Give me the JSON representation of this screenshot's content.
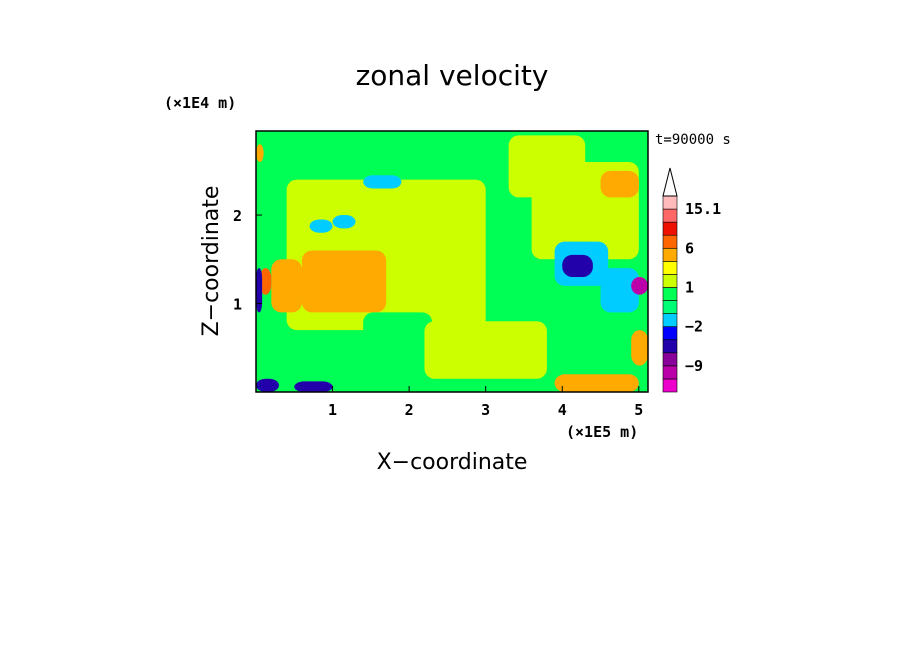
{
  "chart_data": {
    "type": "heatmap",
    "title": "zonal velocity",
    "xlabel": "X−coordinate",
    "ylabel": "Z−coordinate",
    "x_scale_label": "(×1E5 m)",
    "y_scale_label": "(×1E4 m)",
    "time_label": "t=90000 s",
    "xlim": [
      0,
      5.12
    ],
    "ylim": [
      0,
      2.95
    ],
    "x_ticks": [
      1,
      2,
      3,
      4,
      5
    ],
    "y_ticks": [
      1,
      2
    ],
    "colorbar": {
      "tick_labels": [
        "15.1",
        "6",
        "1",
        "−2",
        "−9"
      ],
      "tick_values": [
        15.1,
        6,
        1,
        -2,
        -9
      ],
      "levels": [
        -15,
        -12,
        -9,
        -6,
        -4,
        -2,
        -1,
        0,
        1,
        2,
        3,
        6,
        9,
        12,
        15.1
      ],
      "colors": [
        "#ee00cc",
        "#bb00aa",
        "#880099",
        "#2200aa",
        "#0000ff",
        "#00ccff",
        "#00ff77",
        "#00ff55",
        "#ccff00",
        "#ffff00",
        "#ffaa00",
        "#ff6600",
        "#ee1100",
        "#ff6666",
        "#ffbbbb"
      ]
    },
    "regions": [
      {
        "x": [
          0,
          5.12
        ],
        "z": [
          0,
          2.95
        ],
        "value": 0.5
      },
      {
        "x": [
          0.4,
          3.0
        ],
        "z": [
          0.7,
          2.4
        ],
        "value": 1.5
      },
      {
        "x": [
          3.3,
          4.3
        ],
        "z": [
          2.2,
          2.9
        ],
        "value": 1.5
      },
      {
        "x": [
          3.6,
          5.0
        ],
        "z": [
          1.5,
          2.6
        ],
        "value": 1.5
      },
      {
        "x": [
          0.6,
          1.7
        ],
        "z": [
          0.9,
          1.6
        ],
        "value": 3
      },
      {
        "x": [
          0.2,
          0.6
        ],
        "z": [
          0.9,
          1.5
        ],
        "value": 4
      },
      {
        "x": [
          0.05,
          0.2
        ],
        "z": [
          1.1,
          1.4
        ],
        "value": 8
      },
      {
        "x": [
          1.4,
          2.3
        ],
        "z": [
          0.4,
          0.9
        ],
        "value": 0.5
      },
      {
        "x": [
          2.2,
          3.8
        ],
        "z": [
          0.15,
          0.8
        ],
        "value": 1.5
      },
      {
        "x": [
          3.9,
          5.0
        ],
        "z": [
          0.0,
          0.2
        ],
        "value": 3
      },
      {
        "x": [
          4.9,
          5.12
        ],
        "z": [
          0.3,
          0.7
        ],
        "value": 3
      },
      {
        "x": [
          4.5,
          5.0
        ],
        "z": [
          2.2,
          2.5
        ],
        "value": 3
      },
      {
        "x": [
          0.0,
          0.1
        ],
        "z": [
          2.6,
          2.8
        ],
        "value": 3
      },
      {
        "x": [
          3.9,
          4.6
        ],
        "z": [
          1.2,
          1.7
        ],
        "value": -1.5
      },
      {
        "x": [
          4.0,
          4.4
        ],
        "z": [
          1.3,
          1.55
        ],
        "value": -5
      },
      {
        "x": [
          4.5,
          5.0
        ],
        "z": [
          0.9,
          1.4
        ],
        "value": -1.5
      },
      {
        "x": [
          4.9,
          5.12
        ],
        "z": [
          1.1,
          1.3
        ],
        "value": -10
      },
      {
        "x": [
          0.0,
          0.08
        ],
        "z": [
          0.9,
          1.4
        ],
        "value": -5
      },
      {
        "x": [
          0.0,
          0.3
        ],
        "z": [
          0.0,
          0.15
        ],
        "value": -5
      },
      {
        "x": [
          0.5,
          1.0
        ],
        "z": [
          0.0,
          0.12
        ],
        "value": -5
      },
      {
        "x": [
          1.4,
          1.9
        ],
        "z": [
          2.3,
          2.45
        ],
        "value": -1.5
      },
      {
        "x": [
          1.0,
          1.3
        ],
        "z": [
          1.85,
          2.0
        ],
        "value": -1.5
      },
      {
        "x": [
          0.7,
          1.0
        ],
        "z": [
          1.8,
          1.95
        ],
        "value": -1.5
      }
    ]
  }
}
